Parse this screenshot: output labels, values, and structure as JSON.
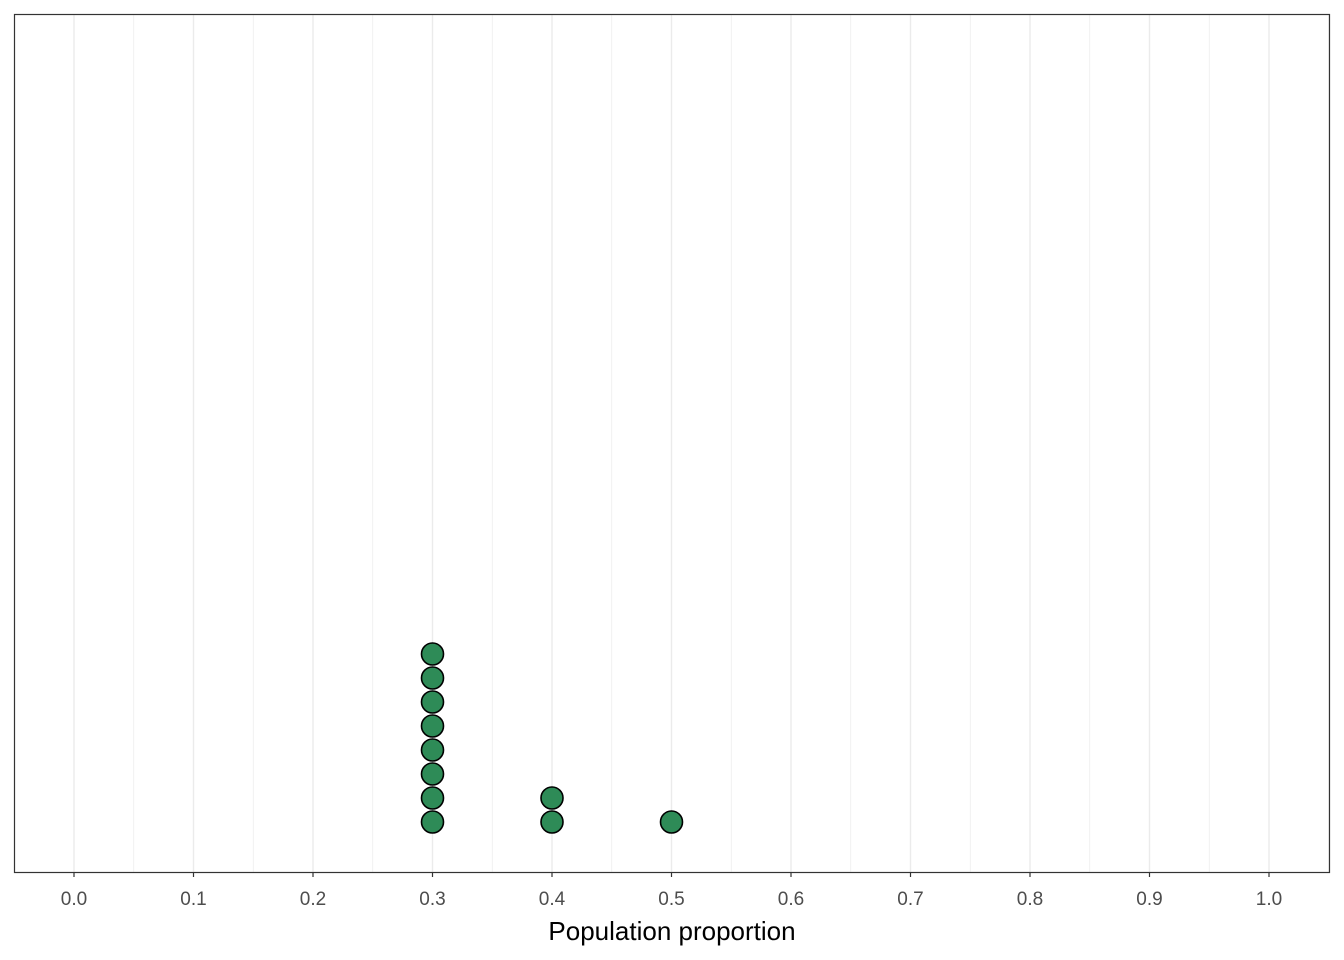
{
  "chart_data": {
    "type": "dotplot",
    "title": "",
    "xlabel": "Population proportion",
    "ylabel": "",
    "xlim": [
      -0.05,
      1.05
    ],
    "x_ticks": [
      "0.0",
      "0.1",
      "0.2",
      "0.3",
      "0.4",
      "0.5",
      "0.6",
      "0.7",
      "0.8",
      "0.9",
      "1.0"
    ],
    "grid": true,
    "points": [
      {
        "x": 0.3,
        "count": 8
      },
      {
        "x": 0.4,
        "count": 2
      },
      {
        "x": 0.5,
        "count": 1
      }
    ],
    "colors": {
      "fill": "#2e8b57",
      "stroke": "#000000",
      "grid": "#ebebeb",
      "border": "#333333"
    }
  }
}
